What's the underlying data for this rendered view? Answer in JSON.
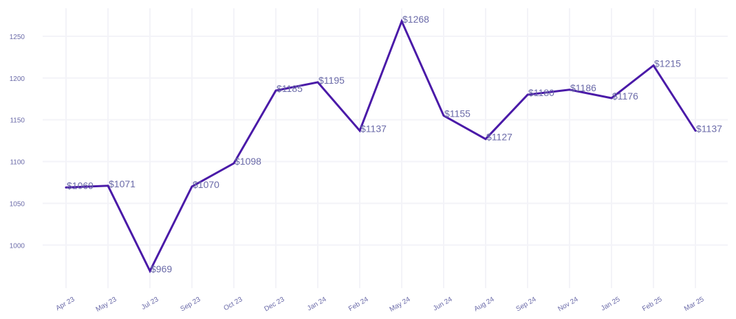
{
  "chart_data": {
    "type": "line",
    "title": "",
    "xlabel": "",
    "ylabel": "",
    "categories": [
      "Apr 23",
      "May 23",
      "Jul 23",
      "Sep 23",
      "Oct 23",
      "Dec 23",
      "Jan 24",
      "Feb 24",
      "May 24",
      "Jun 24",
      "Aug 24",
      "Sep 24",
      "Nov 24",
      "Jan 25",
      "Feb 25",
      "Mar 25"
    ],
    "values": [
      1069,
      1071,
      969,
      1070,
      1098,
      1185,
      1195,
      1137,
      1268,
      1155,
      1127,
      1180,
      1186,
      1176,
      1215,
      1137
    ],
    "data_labels": [
      "$1069",
      "$1071",
      "$969",
      "$1070",
      "$1098",
      "$1185",
      "$1195",
      "$1137",
      "$1268",
      "$1155",
      "$1127",
      "$1180",
      "$1186",
      "$1176",
      "$1215",
      "$1137"
    ],
    "y_ticks": [
      1000,
      1050,
      1100,
      1150,
      1200,
      1250
    ],
    "ylim": [
      955,
      1282
    ],
    "grid": true,
    "line_color": "#4a1aa8"
  }
}
